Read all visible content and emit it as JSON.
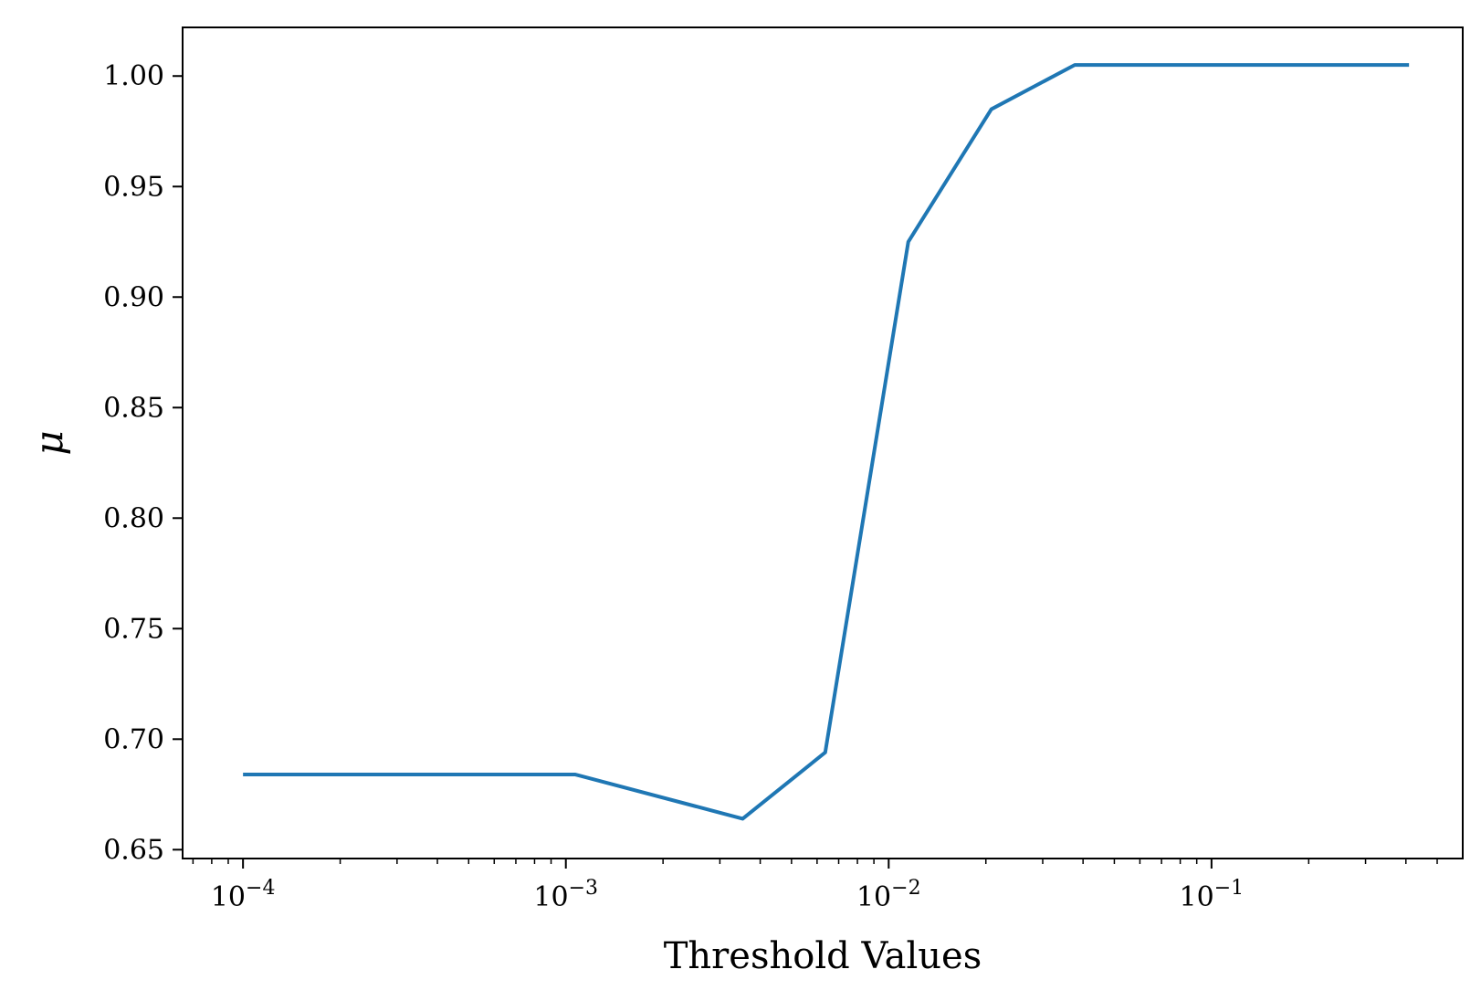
{
  "chart_data": {
    "type": "line",
    "xscale": "log",
    "xlabel": "Threshold Values",
    "ylabel": "μ",
    "xlim": [
      6.5e-05,
      0.6
    ],
    "ylim": [
      0.646,
      1.022
    ],
    "grid": false,
    "legend": "none",
    "line_color": "#1f77b4",
    "x_ticks": [
      {
        "value": 0.0001,
        "base": "10",
        "exp": "−4"
      },
      {
        "value": 0.001,
        "base": "10",
        "exp": "−3"
      },
      {
        "value": 0.01,
        "base": "10",
        "exp": "−2"
      },
      {
        "value": 0.1,
        "base": "10",
        "exp": "−1"
      }
    ],
    "y_ticks": [
      "0.65",
      "0.70",
      "0.75",
      "0.80",
      "0.85",
      "0.90",
      "0.95",
      "1.00"
    ],
    "series": [
      {
        "x": [
          0.0001,
          0.00107,
          0.00353,
          0.00636,
          0.0115,
          0.0208,
          0.0377,
          0.409
        ],
        "y": [
          0.684,
          0.684,
          0.664,
          0.694,
          0.925,
          0.985,
          1.005,
          1.005
        ]
      }
    ]
  }
}
